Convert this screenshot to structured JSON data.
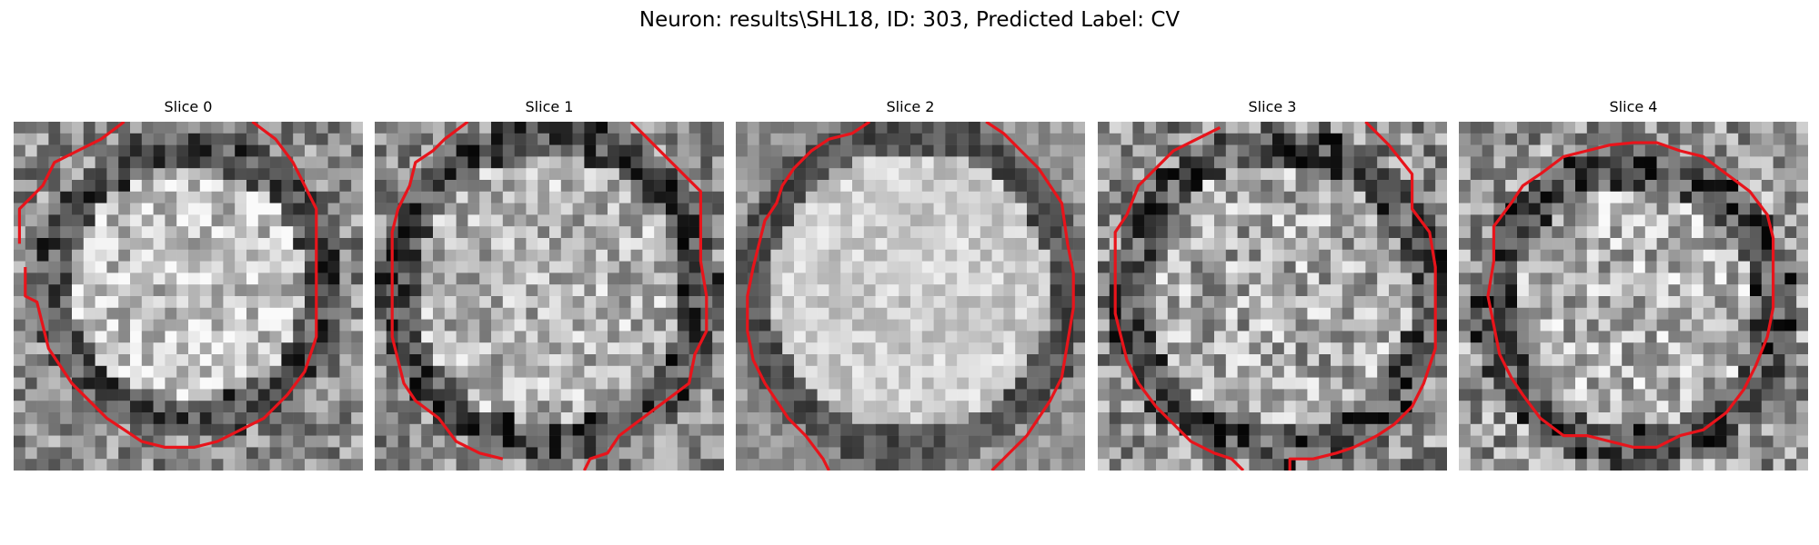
{
  "figure": {
    "title": "Neuron: results\\SHL18, ID: 303, Predicted Label: CV",
    "contour_color": "#e8141b",
    "slices": [
      {
        "title": "Slice 0",
        "grid_size": 30,
        "seed": 11,
        "center": [
          15.0,
          14.0
        ],
        "radius": 11.5,
        "inside_level": 0.76,
        "outside_level": 0.55,
        "ring_level": 0.3,
        "noise": 0.26
      },
      {
        "title": "Slice 1",
        "grid_size": 30,
        "seed": 23,
        "center": [
          15.0,
          14.5
        ],
        "radius": 13.0,
        "inside_level": 0.7,
        "outside_level": 0.55,
        "ring_level": 0.28,
        "noise": 0.26
      },
      {
        "title": "Slice 2",
        "grid_size": 30,
        "seed": 37,
        "center": [
          15.0,
          14.5
        ],
        "radius": 13.5,
        "inside_level": 0.8,
        "outside_level": 0.58,
        "ring_level": 0.32,
        "noise": 0.14
      },
      {
        "title": "Slice 3",
        "grid_size": 30,
        "seed": 41,
        "center": [
          15.5,
          15.0
        ],
        "radius": 12.8,
        "inside_level": 0.66,
        "outside_level": 0.55,
        "ring_level": 0.3,
        "noise": 0.3
      },
      {
        "title": "Slice 4",
        "grid_size": 30,
        "seed": 53,
        "center": [
          15.0,
          16.0
        ],
        "radius": 12.0,
        "inside_level": 0.7,
        "outside_level": 0.6,
        "ring_level": 0.28,
        "noise": 0.3
      }
    ]
  }
}
